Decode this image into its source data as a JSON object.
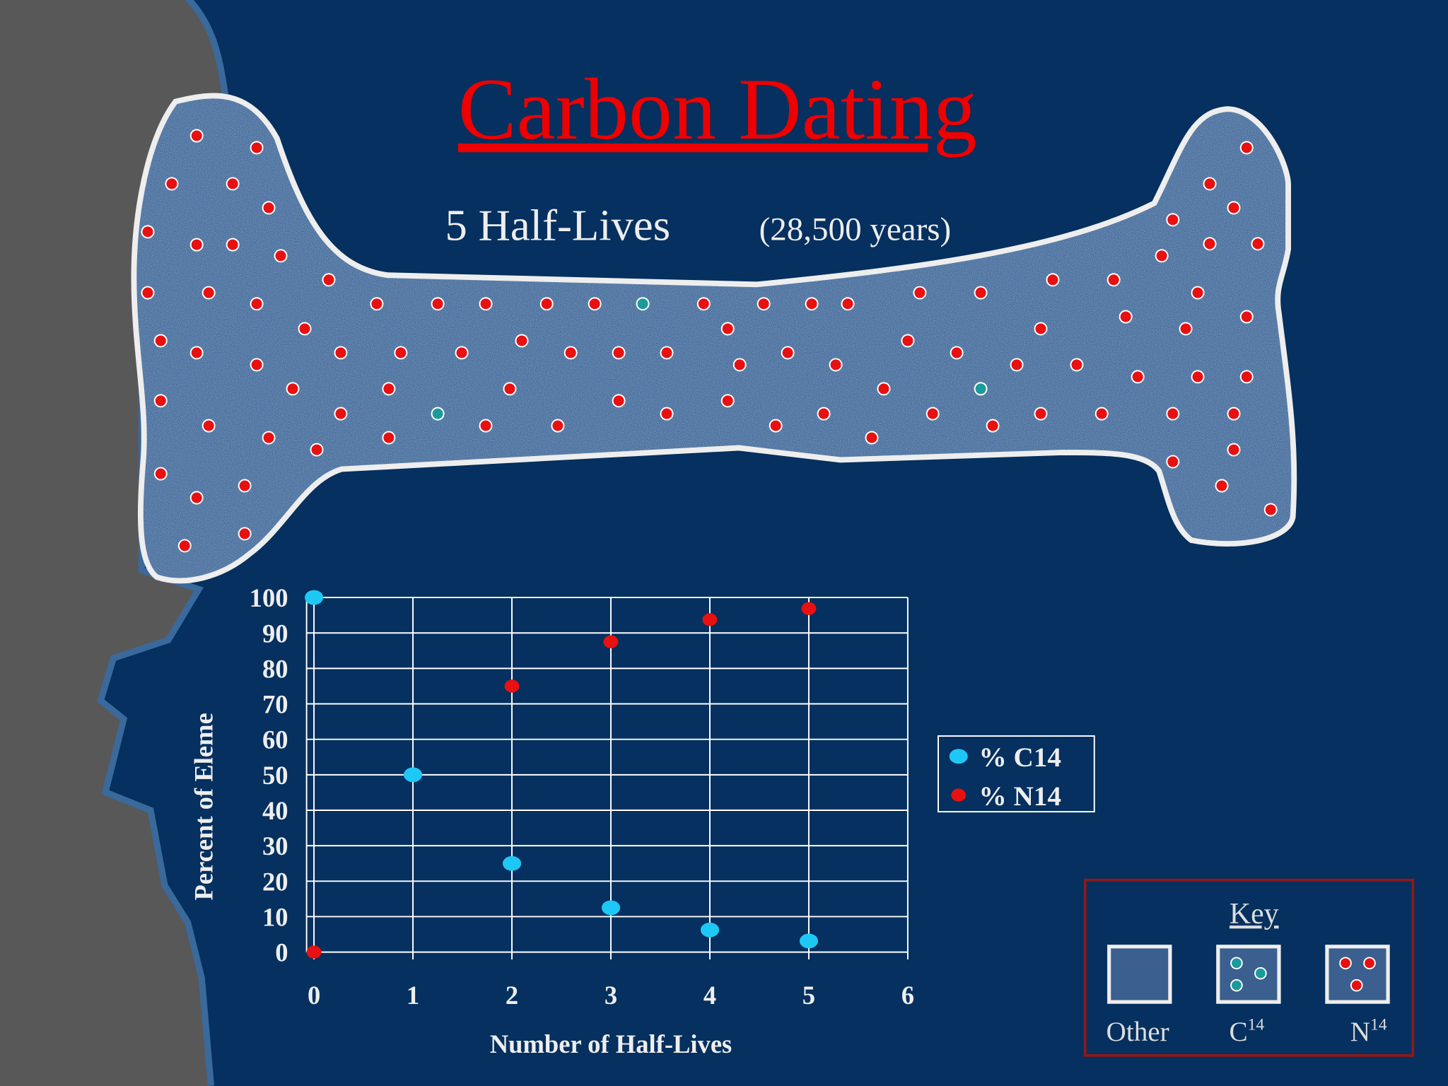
{
  "title": "Carbon Dating",
  "subtitle": "5 Half-Lives",
  "subtitle_note": "(28,500 years)",
  "chart_data": {
    "type": "scatter",
    "x": [
      0,
      1,
      2,
      3,
      4,
      5
    ],
    "xlabel": "Number of Half-Lives",
    "ylabel": "Percent of Eleme",
    "xlim": [
      0,
      6
    ],
    "ylim": [
      0,
      100
    ],
    "xticks": [
      0,
      1,
      2,
      3,
      4,
      5,
      6
    ],
    "yticks": [
      0,
      10,
      20,
      30,
      40,
      50,
      60,
      70,
      80,
      90,
      100
    ],
    "grid": true,
    "series": [
      {
        "name": "% C14",
        "color": "#1ec8f5",
        "values": [
          100,
          50,
          25,
          12.5,
          6.25,
          3.125
        ]
      },
      {
        "name": "% N14",
        "color": "#e81010",
        "values": [
          0,
          50,
          75,
          87.5,
          93.75,
          96.875
        ]
      }
    ]
  },
  "key": {
    "title": "Key",
    "items": [
      {
        "label": "Other"
      },
      {
        "label": "C",
        "sup": "14"
      },
      {
        "label": "N",
        "sup": "14"
      }
    ]
  }
}
